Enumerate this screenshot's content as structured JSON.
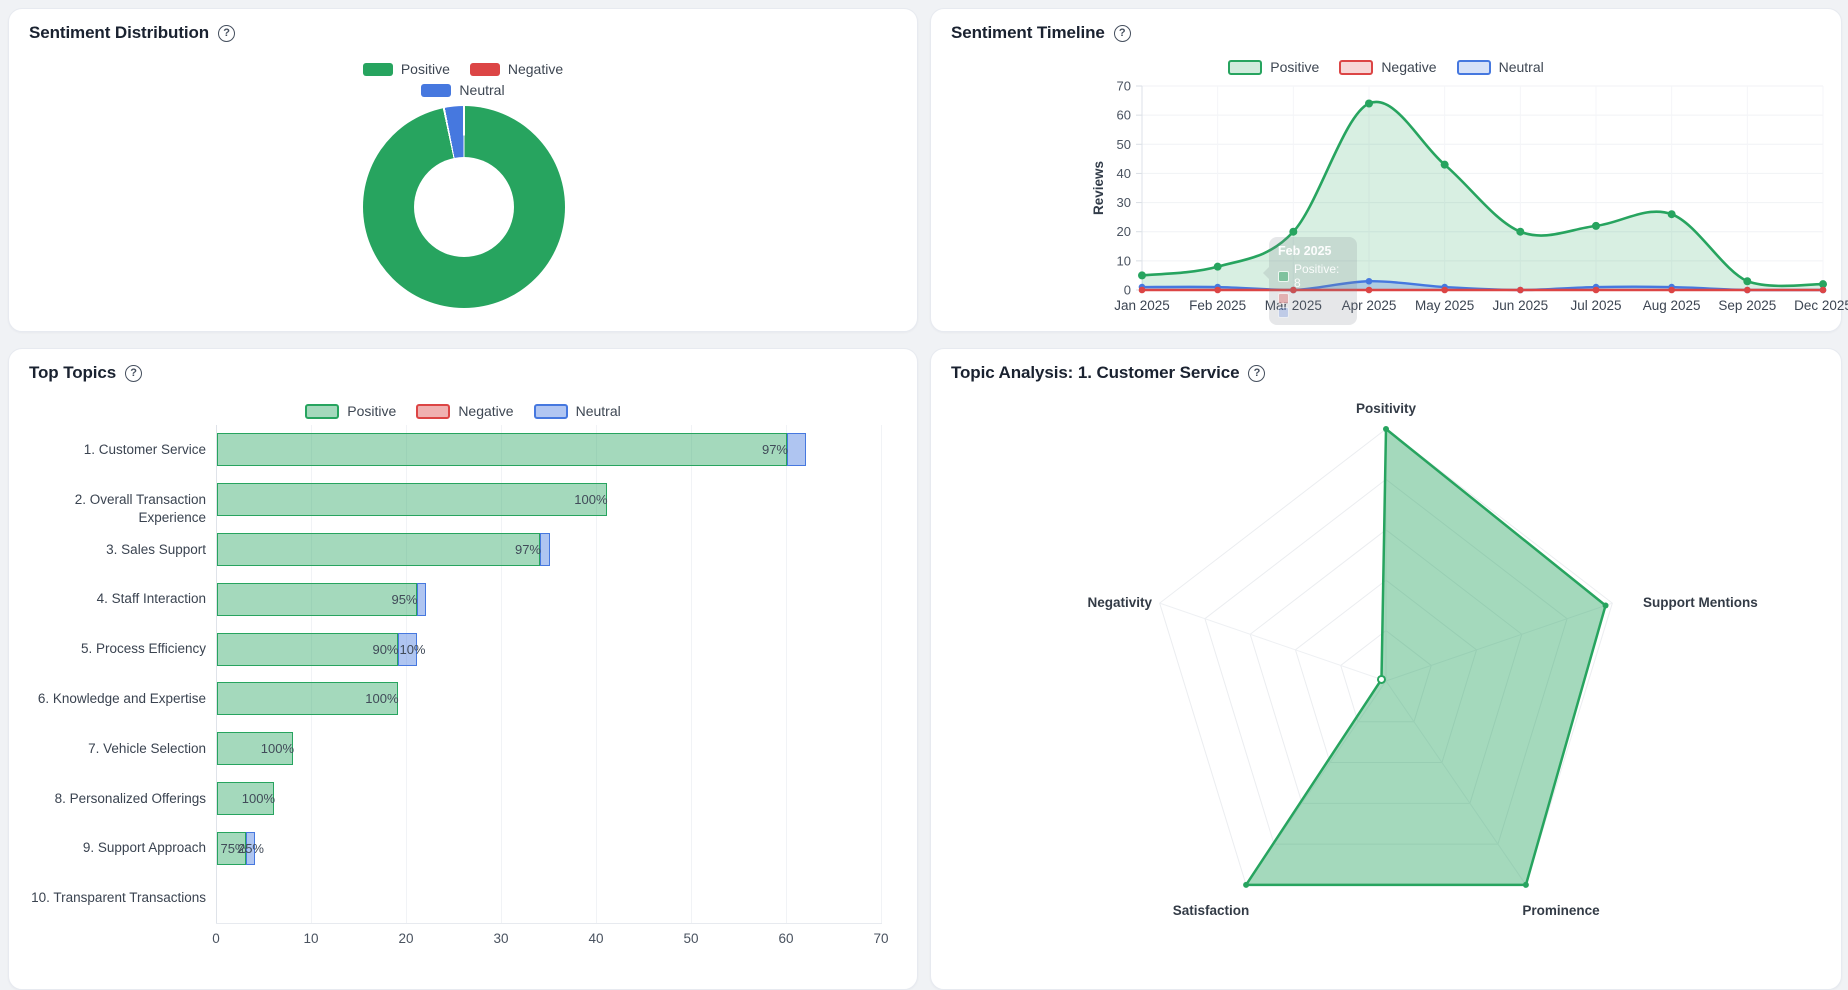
{
  "ui": {
    "help_glyph": "?"
  },
  "colors": {
    "positive": "#27A45F",
    "negative": "#DC4545",
    "neutral": "#4678DF",
    "text_title": "#1A2230",
    "text_muted": "#49525F",
    "text_label": "#3A4350"
  },
  "panels": {
    "sentiment_distribution": {
      "title": "Sentiment Distribution"
    },
    "sentiment_timeline": {
      "title": "Sentiment Timeline"
    },
    "top_topics": {
      "title": "Top Topics"
    },
    "topic_analysis": {
      "title": "Topic Analysis: 1. Customer Service"
    }
  },
  "chart_data": [
    {
      "id": "sentiment-distribution",
      "type": "pie",
      "title": "Sentiment Distribution",
      "legend": [
        {
          "label": "Positive",
          "key": "positive"
        },
        {
          "label": "Negative",
          "key": "negative"
        },
        {
          "label": "Neutral",
          "key": "neutral"
        }
      ],
      "slices": [
        {
          "label": "Positive",
          "value": 96.8,
          "key": "positive"
        },
        {
          "label": "Negative",
          "value": 0,
          "key": "negative"
        },
        {
          "label": "Neutral",
          "value": 3.2,
          "key": "neutral"
        }
      ],
      "hole_ratio": 0.5
    },
    {
      "id": "sentiment-timeline",
      "type": "area",
      "title": "Sentiment Timeline",
      "x": [
        "Jan 2025",
        "Feb 2025",
        "Mar 2025",
        "Apr 2025",
        "May 2025",
        "Jun 2025",
        "Jul 2025",
        "Aug 2025",
        "Sep 2025",
        "Dec 2025"
      ],
      "ylabel": "Reviews",
      "ylim": [
        0,
        70
      ],
      "yticks": [
        0,
        10,
        20,
        30,
        40,
        50,
        60,
        70
      ],
      "legend": [
        {
          "label": "Positive",
          "key": "positive"
        },
        {
          "label": "Negative",
          "key": "negative"
        },
        {
          "label": "Neutral",
          "key": "neutral"
        }
      ],
      "series": [
        {
          "name": "Positive",
          "key": "positive",
          "values": [
            5,
            8,
            20,
            64,
            43,
            20,
            22,
            26,
            3,
            2
          ]
        },
        {
          "name": "Negative",
          "key": "negative",
          "values": [
            0,
            0,
            0,
            0,
            0,
            0,
            0,
            0,
            0,
            0
          ]
        },
        {
          "name": "Neutral",
          "key": "neutral",
          "values": [
            1,
            1,
            0,
            3,
            1,
            0,
            1,
            1,
            0,
            0
          ]
        }
      ],
      "tooltip": {
        "title": "Feb 2025",
        "rows": [
          {
            "key": "positive",
            "text": "Positive: 8"
          },
          {
            "key": "negative",
            "text": ""
          },
          {
            "key": "neutral",
            "text": ""
          }
        ]
      }
    },
    {
      "id": "top-topics",
      "type": "bar",
      "orientation": "horizontal",
      "title": "Top Topics",
      "legend": [
        {
          "label": "Positive",
          "key": "positive"
        },
        {
          "label": "Negative",
          "key": "negative"
        },
        {
          "label": "Neutral",
          "key": "neutral"
        }
      ],
      "categories": [
        "1. Customer Service",
        "2. Overall Transaction Experience",
        "3. Sales Support",
        "4. Staff Interaction",
        "5. Process Efficiency",
        "6. Knowledge and Expertise",
        "7. Vehicle Selection",
        "8. Personalized Offerings",
        "9. Support Approach",
        "10. Transparent Transactions"
      ],
      "xlim": [
        0,
        70
      ],
      "xticks": [
        0,
        10,
        20,
        30,
        40,
        50,
        60,
        70
      ],
      "series": [
        {
          "name": "Positive",
          "key": "positive",
          "values": [
            60,
            41,
            34,
            21,
            19,
            19,
            8,
            6,
            3,
            0
          ],
          "labels": [
            "97%",
            "100%",
            "97%",
            "95%",
            "90%",
            "100%",
            "100%",
            "100%",
            "75%",
            ""
          ]
        },
        {
          "name": "Neutral",
          "key": "neutral",
          "values": [
            2,
            0,
            1,
            1,
            2,
            0,
            0,
            0,
            1,
            0
          ],
          "labels": [
            "",
            "",
            "",
            "",
            "10%",
            "",
            "",
            "",
            "25%",
            ""
          ]
        }
      ]
    },
    {
      "id": "topic-analysis-radar",
      "type": "radar",
      "title": "Topic Analysis: 1. Customer Service",
      "axes": [
        "Positivity",
        "Support Mentions",
        "Prominence",
        "Satisfaction",
        "Negativity"
      ],
      "values": [
        1,
        0.97,
        1,
        1,
        0.02
      ],
      "scale": [
        0,
        1
      ],
      "rings": 5
    }
  ]
}
